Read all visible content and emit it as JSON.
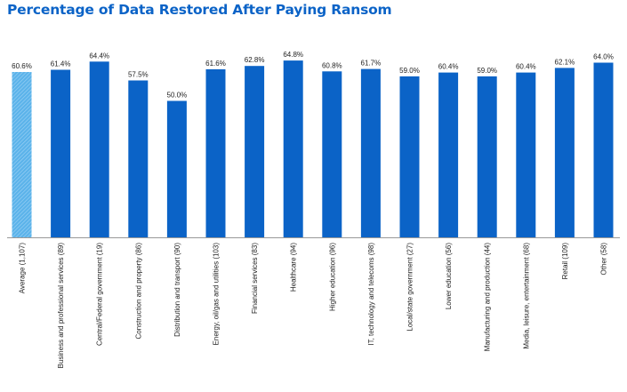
{
  "chart_data": {
    "type": "bar",
    "title": "Percentage of Data Restored After Paying Ransom",
    "xlabel": "",
    "ylabel": "",
    "ylim": [
      0,
      100
    ],
    "grid": false,
    "legend": "none",
    "value_suffix": "%",
    "categories": [
      "Average (1,107)",
      "Business and professional services (89)",
      "Central/Federal government (19)",
      "Construction and property (86)",
      "Distribution and transport (90)",
      "Energy, oil/gas and utilities (103)",
      "Financial services (83)",
      "Healthcare (94)",
      "Higher education (96)",
      "IT, technology and telecoms (98)",
      "Local/state government (27)",
      "Lower education (56)",
      "Manufacturing and production (44)",
      "Media, leisure, entertainment (68)",
      "Retail (109)",
      "Other (58)"
    ],
    "values": [
      60.6,
      61.4,
      64.4,
      57.5,
      50.0,
      61.6,
      62.8,
      64.8,
      60.8,
      61.7,
      59.0,
      60.4,
      59.0,
      60.4,
      62.1,
      64.0
    ],
    "value_labels": [
      "60.6%",
      "61.4%",
      "64.4%",
      "57.5%",
      "50.0%",
      "61.6%",
      "62.8%",
      "64.8%",
      "60.8%",
      "61.7%",
      "59.0%",
      "60.4%",
      "59.0%",
      "60.4%",
      "62.1%",
      "64.0%"
    ],
    "colors": {
      "average": "#5bb3ea",
      "bar": "#0b63c7",
      "title": "#0b63c7",
      "axis": "#999999"
    }
  }
}
